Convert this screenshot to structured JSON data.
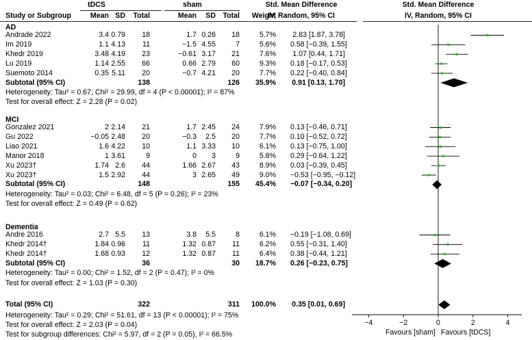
{
  "header": {
    "group1": "tDCS",
    "group2": "sham",
    "smd_label": "Std. Mean Difference",
    "smd_sub": "IV, Random, 95% CI",
    "columns": [
      "Study or Subgroup",
      "Mean",
      "SD",
      "Total",
      "Mean",
      "SD",
      "Total",
      "Weight"
    ]
  },
  "groups": [
    {
      "name": "AD",
      "studies": [
        {
          "study": "Andrade 2022",
          "m1": "3.4",
          "sd1": "0.79",
          "n1": "18",
          "m2": "1.7",
          "sd2": "0.26",
          "n2": "18",
          "weight": "5.7%",
          "ci_text": "2.83 [1.87, 3.78]",
          "est": 2.83,
          "lo": 1.87,
          "hi": 3.78
        },
        {
          "study": "Im 2019",
          "m1": "1.1",
          "sd1": "4.13",
          "n1": "11",
          "m2": "−1.5",
          "sd2": "4.55",
          "n2": "7",
          "weight": "5.6%",
          "ci_text": "0.58 [−0.39, 1.55]",
          "est": 0.58,
          "lo": -0.39,
          "hi": 1.55
        },
        {
          "study": "Khedr 2019",
          "m1": "3.48",
          "sd1": "4.19",
          "n1": "23",
          "m2": "−0.61",
          "sd2": "3.17",
          "n2": "21",
          "weight": "7.6%",
          "ci_text": "1.07 [0.44, 1.71]",
          "est": 1.07,
          "lo": 0.44,
          "hi": 1.71
        },
        {
          "study": "Lu 2019",
          "m1": "1.14",
          "sd1": "2.55",
          "n1": "66",
          "m2": "0.66",
          "sd2": "2.79",
          "n2": "60",
          "weight": "9.3%",
          "ci_text": "0.18 [−0.17, 0.53]",
          "est": 0.18,
          "lo": -0.17,
          "hi": 0.53
        },
        {
          "study": "Suemoto 2014",
          "m1": "0.35",
          "sd1": "5.11",
          "n1": "20",
          "m2": "−0.7",
          "sd2": "4.21",
          "n2": "20",
          "weight": "7.7%",
          "ci_text": "0.22 [−0.40, 0.84]",
          "est": 0.22,
          "lo": -0.4,
          "hi": 0.84
        }
      ],
      "subtotal": {
        "label": "Subtotal (95% CI)",
        "n1": "138",
        "n2": "126",
        "weight": "35.9%",
        "ci_text": "0.91 [0.13, 1.70]",
        "est": 0.91,
        "lo": 0.13,
        "hi": 1.7
      },
      "heterogeneity": "Heterogeneity: Tau² = 0.67; Chi² = 29.99, df = 4 (P < 0.00001); I² = 87%",
      "overall": "Test for overall effect: Z = 2.28 (P = 0.02)"
    },
    {
      "name": "MCI",
      "studies": [
        {
          "study": "Gonzalez 2021",
          "m1": "2",
          "sd1": "2.14",
          "n1": "21",
          "m2": "1.7",
          "sd2": "2.45",
          "n2": "24",
          "weight": "7.9%",
          "ci_text": "0.13 [−0.46, 0.71]",
          "est": 0.13,
          "lo": -0.46,
          "hi": 0.71
        },
        {
          "study": "Gu 2022",
          "m1": "−0.05",
          "sd1": "2.48",
          "n1": "20",
          "m2": "−0.3",
          "sd2": "2.5",
          "n2": "20",
          "weight": "7.7%",
          "ci_text": "0.10 [−0.52, 0.72]",
          "est": 0.1,
          "lo": -0.52,
          "hi": 0.72
        },
        {
          "study": "Liao 2021",
          "m1": "1.6",
          "sd1": "4.22",
          "n1": "10",
          "m2": "1.1",
          "sd2": "3.33",
          "n2": "10",
          "weight": "6.1%",
          "ci_text": "0.13 [−0.75, 1.00]",
          "est": 0.13,
          "lo": -0.75,
          "hi": 1.0
        },
        {
          "study": "Manor 2018",
          "m1": "1",
          "sd1": "3.61",
          "n1": "9",
          "m2": "0",
          "sd2": "3",
          "n2": "9",
          "weight": "5.8%",
          "ci_text": "0.29 [−0.64, 1.22]",
          "est": 0.29,
          "lo": -0.64,
          "hi": 1.22
        },
        {
          "study": "Xu 2023†",
          "m1": "1.74",
          "sd1": "2.6",
          "n1": "44",
          "m2": "1.66",
          "sd2": "2.67",
          "n2": "43",
          "weight": "8.9%",
          "ci_text": "0.03 [−0.39, 0.45]",
          "est": 0.03,
          "lo": -0.39,
          "hi": 0.45
        },
        {
          "study": "Xu 2023†",
          "m1": "1.5",
          "sd1": "2.92",
          "n1": "44",
          "m2": "3",
          "sd2": "2.65",
          "n2": "49",
          "weight": "9.0%",
          "ci_text": "−0.53 [−0.95, −0.12]",
          "est": -0.53,
          "lo": -0.95,
          "hi": -0.12
        }
      ],
      "subtotal": {
        "label": "Subtotal (95% CI)",
        "n1": "148",
        "n2": "155",
        "weight": "45.4%",
        "ci_text": "−0.07 [−0.34, 0.20]",
        "est": -0.07,
        "lo": -0.34,
        "hi": 0.2
      },
      "heterogeneity": "Heterogeneity: Tau² = 0.03; Chi² = 6.48, df = 5 (P = 0.26); I² = 23%",
      "overall": "Test for overall effect: Z = 0.49 (P = 0.62)"
    },
    {
      "name": "Dementia",
      "studies": [
        {
          "study": "Andre 2016",
          "m1": "2.7",
          "sd1": "5.5",
          "n1": "13",
          "m2": "3.8",
          "sd2": "5.5",
          "n2": "8",
          "weight": "6.1%",
          "ci_text": "−0.19 [−1.08, 0.69]",
          "est": -0.19,
          "lo": -1.08,
          "hi": 0.69
        },
        {
          "study": "Khedr 2014†",
          "m1": "1.84",
          "sd1": "0.96",
          "n1": "11",
          "m2": "1.32",
          "sd2": "0.87",
          "n2": "11",
          "weight": "6.2%",
          "ci_text": "0.55 [−0.31, 1.40]",
          "est": 0.55,
          "lo": -0.31,
          "hi": 1.4
        },
        {
          "study": "Khedr 2014†",
          "m1": "1.68",
          "sd1": "0.93",
          "n1": "12",
          "m2": "1.32",
          "sd2": "0.87",
          "n2": "11",
          "weight": "6.4%",
          "ci_text": "0.38 [−0.44, 1.21]",
          "est": 0.38,
          "lo": -0.44,
          "hi": 1.21
        }
      ],
      "subtotal": {
        "label": "Subtotal (95% CI)",
        "n1": "36",
        "n2": "30",
        "weight": "18.7%",
        "ci_text": "0.26 [−0.23, 0.75]",
        "est": 0.26,
        "lo": -0.23,
        "hi": 0.75
      },
      "heterogeneity": "Heterogeneity: Tau² = 0.00; Chi² = 1.52, df = 2 (P = 0.47); I² = 0%",
      "overall": "Test for overall effect: Z = 1.03 (P = 0.30)"
    }
  ],
  "total": {
    "label": "Total (95% CI)",
    "n1": "322",
    "n2": "311",
    "weight": "100.0%",
    "ci_text": "0.35 [0.01, 0.69]",
    "est": 0.35,
    "lo": 0.01,
    "hi": 0.69
  },
  "footer": {
    "heterogeneity": "Heterogeneity: Tau² = 0.29; Chi² = 51.61, df = 13 (P < 0.00001); I² = 75%",
    "overall": "Test for overall effect: Z = 2.03 (P = 0.04)",
    "subgroup": "Test for subgroup differences: Chi² = 5.97, df = 2 (P = 0.05), I² = 66.5%"
  },
  "chart_data": {
    "type": "forest",
    "title": "Std. Mean Difference",
    "subtitle": "IV, Random, 95% CI",
    "xlim": [
      -5,
      5
    ],
    "ticks": [
      -4,
      -2,
      0,
      2,
      4
    ],
    "tick_labels": [
      "−4",
      "−2",
      "0",
      "2",
      "4"
    ],
    "favours_left": "Favours [sham]",
    "favours_right": "Favours [tDCS]",
    "marker_color": "#22bb22",
    "line_color": "#000000"
  }
}
